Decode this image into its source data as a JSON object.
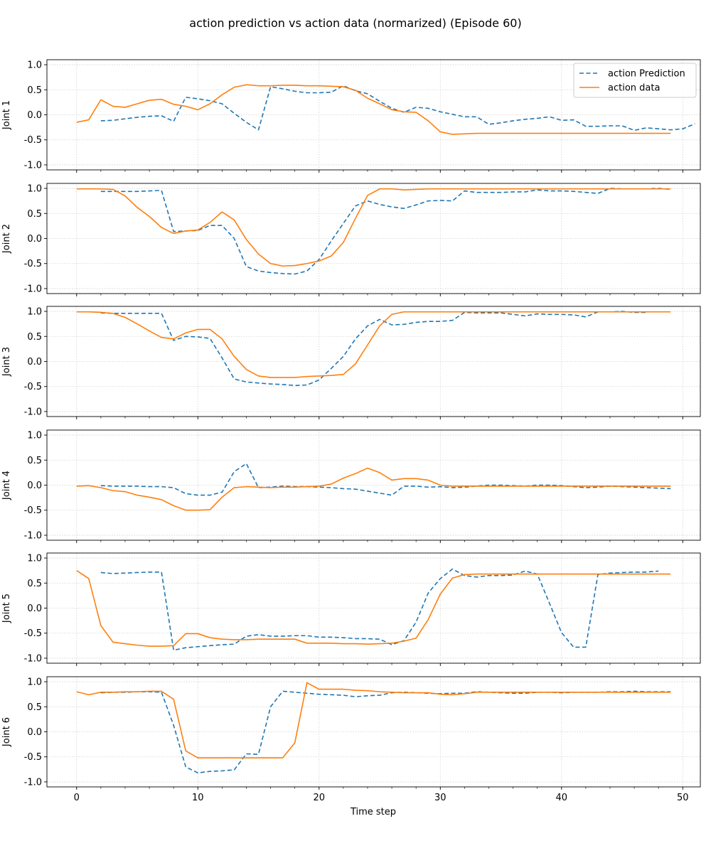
{
  "title": "action prediction vs action data (normarized) (Episode 60)",
  "xlabel": "Time step",
  "legend": {
    "placement": "top-right",
    "entries": [
      {
        "label": "action Prediction",
        "color": "#1f77b4",
        "style": "dashed"
      },
      {
        "label": "action data",
        "color": "#ff7f0e",
        "style": "solid"
      }
    ]
  },
  "colors": {
    "prediction": "#1f77b4",
    "data": "#ff7f0e"
  },
  "chart_data": {
    "type": "line",
    "grid": true,
    "xlim": [
      -2.45,
      51.45
    ],
    "ylim": [
      -1.1,
      1.1
    ],
    "xticks": [
      0,
      10,
      20,
      30,
      40,
      50
    ],
    "yticks": [
      -1.0,
      -0.5,
      0.0,
      0.5,
      1.0
    ],
    "subplots": [
      {
        "ylabel": "Joint 1",
        "prediction_start": 2,
        "prediction": [
          -0.12,
          -0.11,
          -0.08,
          -0.05,
          -0.03,
          -0.02,
          -0.13,
          0.35,
          0.32,
          0.28,
          0.22,
          0.03,
          -0.15,
          -0.3,
          0.56,
          0.52,
          0.47,
          0.44,
          0.44,
          0.45,
          0.58,
          0.48,
          0.42,
          0.27,
          0.13,
          0.05,
          0.15,
          0.13,
          0.06,
          0.01,
          -0.04,
          -0.04,
          -0.19,
          -0.16,
          -0.12,
          -0.09,
          -0.07,
          -0.04,
          -0.11,
          -0.1,
          -0.23,
          -0.23,
          -0.22,
          -0.22,
          -0.31,
          -0.26,
          -0.28,
          -0.3,
          -0.28,
          -0.18
        ],
        "data_start": 0,
        "data": [
          -0.15,
          -0.1,
          0.3,
          0.17,
          0.15,
          0.22,
          0.29,
          0.31,
          0.21,
          0.17,
          0.1,
          0.22,
          0.4,
          0.55,
          0.6,
          0.58,
          0.58,
          0.59,
          0.59,
          0.58,
          0.58,
          0.57,
          0.56,
          0.49,
          0.33,
          0.22,
          0.1,
          0.06,
          0.05,
          -0.12,
          -0.34,
          -0.39,
          -0.38,
          -0.37,
          -0.37,
          -0.37,
          -0.37,
          -0.37,
          -0.37,
          -0.37,
          -0.37,
          -0.37,
          -0.37,
          -0.37,
          -0.37,
          -0.37,
          -0.37,
          -0.37,
          -0.37,
          -0.37
        ]
      },
      {
        "ylabel": "Joint 2",
        "prediction_start": 2,
        "prediction": [
          0.94,
          0.94,
          0.94,
          0.94,
          0.95,
          0.96,
          0.14,
          0.15,
          0.16,
          0.26,
          0.26,
          0.0,
          -0.56,
          -0.65,
          -0.68,
          -0.7,
          -0.71,
          -0.65,
          -0.42,
          -0.05,
          0.3,
          0.65,
          0.75,
          0.68,
          0.63,
          0.6,
          0.67,
          0.75,
          0.76,
          0.75,
          0.95,
          0.92,
          0.92,
          0.92,
          0.93,
          0.93,
          0.97,
          0.95,
          0.95,
          0.94,
          0.92,
          0.9,
          1.0,
          0.99,
          0.99,
          0.99,
          1.0,
          0.98
        ],
        "data_start": 0,
        "data": [
          0.99,
          0.99,
          0.99,
          0.98,
          0.85,
          0.62,
          0.44,
          0.22,
          0.1,
          0.15,
          0.17,
          0.32,
          0.53,
          0.37,
          -0.02,
          -0.31,
          -0.5,
          -0.55,
          -0.54,
          -0.5,
          -0.45,
          -0.35,
          -0.08,
          0.4,
          0.86,
          0.99,
          0.99,
          0.97,
          0.98,
          0.99,
          0.99,
          0.99,
          0.99,
          0.99,
          0.99,
          0.99,
          0.99,
          0.99,
          0.99,
          0.99,
          0.99,
          0.99,
          0.99,
          0.99,
          0.99,
          0.99,
          0.99,
          0.99,
          0.99,
          0.99
        ]
      },
      {
        "ylabel": "Joint 3",
        "prediction_start": 2,
        "prediction": [
          0.97,
          0.96,
          0.96,
          0.96,
          0.96,
          0.96,
          0.42,
          0.5,
          0.49,
          0.46,
          0.07,
          -0.35,
          -0.41,
          -0.43,
          -0.45,
          -0.46,
          -0.48,
          -0.47,
          -0.37,
          -0.14,
          0.1,
          0.45,
          0.71,
          0.84,
          0.73,
          0.74,
          0.78,
          0.8,
          0.8,
          0.82,
          0.98,
          0.97,
          0.97,
          0.97,
          0.94,
          0.91,
          0.95,
          0.94,
          0.94,
          0.93,
          0.89,
          0.99,
          0.99,
          1.0,
          0.98,
          0.98
        ],
        "data_start": 0,
        "data": [
          0.99,
          0.99,
          0.98,
          0.96,
          0.88,
          0.75,
          0.61,
          0.48,
          0.45,
          0.57,
          0.64,
          0.64,
          0.45,
          0.1,
          -0.16,
          -0.29,
          -0.32,
          -0.32,
          -0.32,
          -0.3,
          -0.29,
          -0.28,
          -0.26,
          -0.05,
          0.33,
          0.71,
          0.94,
          0.99,
          0.99,
          0.99,
          0.99,
          0.99,
          0.99,
          0.99,
          0.99,
          0.99,
          0.99,
          0.99,
          0.99,
          0.99,
          0.99,
          0.99,
          0.99,
          0.99,
          0.99,
          0.99,
          0.99,
          0.99,
          0.99,
          0.99
        ]
      },
      {
        "ylabel": "Joint 4",
        "prediction_start": 2,
        "prediction": [
          -0.01,
          -0.02,
          -0.02,
          -0.02,
          -0.03,
          -0.03,
          -0.05,
          -0.17,
          -0.2,
          -0.2,
          -0.14,
          0.27,
          0.43,
          -0.05,
          -0.04,
          -0.02,
          -0.03,
          -0.03,
          -0.04,
          -0.05,
          -0.07,
          -0.08,
          -0.12,
          -0.16,
          -0.2,
          -0.02,
          -0.02,
          -0.04,
          -0.03,
          -0.05,
          -0.04,
          -0.02,
          0.0,
          0.0,
          -0.01,
          -0.02,
          0.0,
          0.0,
          -0.01,
          -0.03,
          -0.05,
          -0.04,
          -0.02,
          -0.03,
          -0.04,
          -0.05,
          -0.06,
          -0.07
        ],
        "data_start": 0,
        "data": [
          -0.02,
          -0.01,
          -0.05,
          -0.11,
          -0.13,
          -0.2,
          -0.24,
          -0.29,
          -0.41,
          -0.5,
          -0.5,
          -0.49,
          -0.24,
          -0.05,
          -0.03,
          -0.04,
          -0.05,
          -0.04,
          -0.04,
          -0.03,
          -0.02,
          0.02,
          0.14,
          0.23,
          0.34,
          0.25,
          0.1,
          0.13,
          0.13,
          0.1,
          0.0,
          -0.02,
          -0.02,
          -0.02,
          -0.02,
          -0.02,
          -0.02,
          -0.02,
          -0.02,
          -0.02,
          -0.02,
          -0.02,
          -0.02,
          -0.02,
          -0.02,
          -0.02,
          -0.02,
          -0.02,
          -0.02,
          -0.02
        ]
      },
      {
        "ylabel": "Joint 5",
        "prediction_start": 2,
        "prediction": [
          0.71,
          0.69,
          0.7,
          0.71,
          0.72,
          0.72,
          -0.84,
          -0.79,
          -0.77,
          -0.75,
          -0.73,
          -0.72,
          -0.56,
          -0.53,
          -0.56,
          -0.56,
          -0.55,
          -0.55,
          -0.58,
          -0.58,
          -0.59,
          -0.61,
          -0.61,
          -0.62,
          -0.73,
          -0.65,
          -0.28,
          0.3,
          0.59,
          0.78,
          0.65,
          0.62,
          0.65,
          0.65,
          0.66,
          0.74,
          0.68,
          0.1,
          -0.49,
          -0.78,
          -0.78,
          0.67,
          0.7,
          0.71,
          0.72,
          0.72,
          0.74
        ],
        "data_start": 0,
        "data": [
          0.75,
          0.59,
          -0.35,
          -0.68,
          -0.71,
          -0.74,
          -0.76,
          -0.76,
          -0.75,
          -0.51,
          -0.51,
          -0.59,
          -0.62,
          -0.63,
          -0.63,
          -0.62,
          -0.62,
          -0.62,
          -0.62,
          -0.7,
          -0.7,
          -0.7,
          -0.71,
          -0.71,
          -0.72,
          -0.71,
          -0.7,
          -0.66,
          -0.6,
          -0.23,
          0.28,
          0.6,
          0.67,
          0.68,
          0.68,
          0.68,
          0.68,
          0.68,
          0.68,
          0.68,
          0.68,
          0.68,
          0.68,
          0.68,
          0.68,
          0.68,
          0.68,
          0.68,
          0.68,
          0.68
        ]
      },
      {
        "ylabel": "Joint 6",
        "prediction_start": 2,
        "prediction": [
          0.78,
          0.79,
          0.79,
          0.8,
          0.8,
          0.79,
          0.13,
          -0.7,
          -0.82,
          -0.79,
          -0.78,
          -0.76,
          -0.44,
          -0.45,
          0.5,
          0.81,
          0.79,
          0.77,
          0.75,
          0.74,
          0.73,
          0.7,
          0.72,
          0.73,
          0.78,
          0.79,
          0.78,
          0.77,
          0.76,
          0.77,
          0.77,
          0.8,
          0.79,
          0.78,
          0.77,
          0.77,
          0.79,
          0.79,
          0.78,
          0.79,
          0.79,
          0.79,
          0.8,
          0.8,
          0.81,
          0.8,
          0.8,
          0.8
        ],
        "data_start": 0,
        "data": [
          0.8,
          0.74,
          0.79,
          0.79,
          0.8,
          0.8,
          0.81,
          0.81,
          0.65,
          -0.38,
          -0.52,
          -0.52,
          -0.52,
          -0.52,
          -0.52,
          -0.52,
          -0.52,
          -0.52,
          -0.22,
          0.98,
          0.85,
          0.85,
          0.85,
          0.83,
          0.82,
          0.8,
          0.79,
          0.78,
          0.78,
          0.78,
          0.75,
          0.74,
          0.76,
          0.79,
          0.79,
          0.79,
          0.79,
          0.79,
          0.79,
          0.79,
          0.79,
          0.79,
          0.79,
          0.79,
          0.79,
          0.79,
          0.79,
          0.79,
          0.79,
          0.79
        ]
      }
    ]
  }
}
